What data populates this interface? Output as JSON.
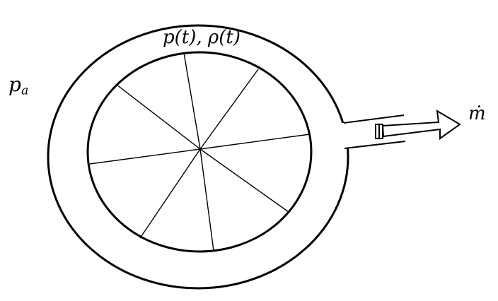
{
  "labels": {
    "tank_state": "p(t), ρ(t)",
    "ambient_pressure": "pa",
    "mass_flow": "ṁ"
  },
  "colors": {
    "stroke": "#000000",
    "background": "#ffffff"
  }
}
